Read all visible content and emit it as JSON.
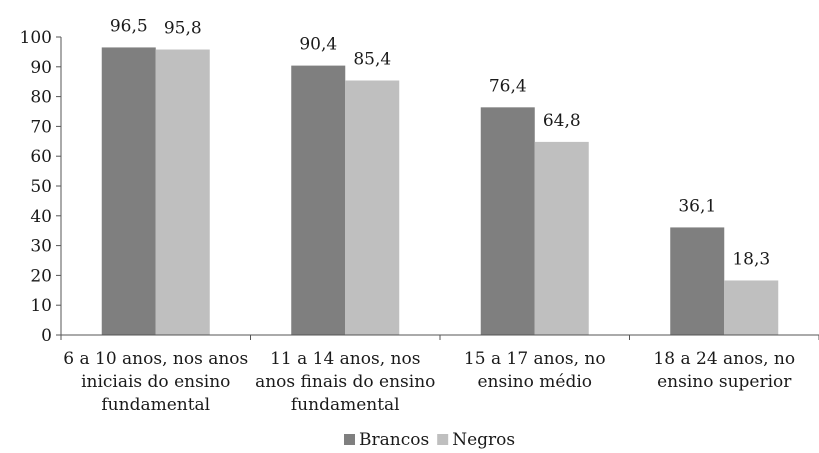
{
  "chart_data": {
    "type": "bar",
    "title": "",
    "xlabel": "",
    "ylabel": "",
    "ylim": [
      0,
      100
    ],
    "yticks": [
      0,
      10,
      20,
      30,
      40,
      50,
      60,
      70,
      80,
      90,
      100
    ],
    "grid": false,
    "legend_position": "bottom",
    "categories": [
      [
        "6 a 10 anos, nos anos",
        "iniciais do ensino",
        "fundamental"
      ],
      [
        "11 a 14 anos, nos",
        "anos finais do ensino",
        "fundamental"
      ],
      [
        "15 a 17 anos, no",
        "ensino médio"
      ],
      [
        "18 a 24 anos, no",
        "ensino superior"
      ]
    ],
    "series": [
      {
        "name": "Brancos",
        "color": "#7f7f7f",
        "values": [
          96.5,
          90.4,
          76.4,
          36.1
        ],
        "labels": [
          "96,5",
          "90,4",
          "76,4",
          "36,1"
        ]
      },
      {
        "name": "Negros",
        "color": "#bfbfbf",
        "values": [
          95.8,
          85.4,
          64.8,
          18.3
        ],
        "labels": [
          "95,8",
          "85,4",
          "64,8",
          "18,3"
        ]
      }
    ]
  }
}
